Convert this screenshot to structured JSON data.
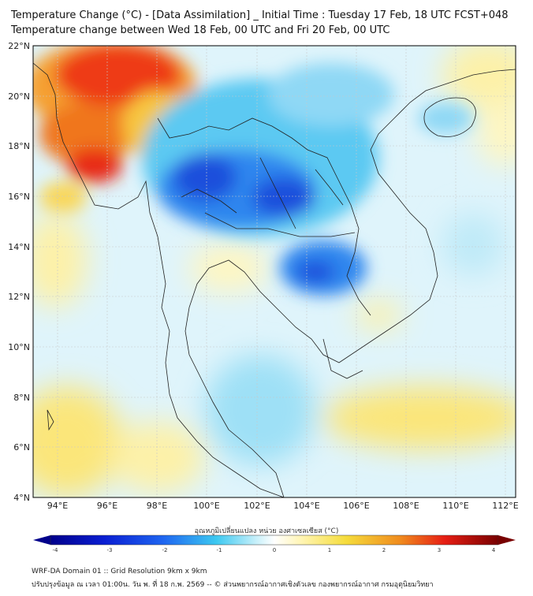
{
  "title": {
    "line1": "Temperature Change (°C) - [Data Assimilation] _ Initial Time : Tuesday 17 Feb, 18 UTC FCST+048",
    "line2": "Temperature change between Wed 18 Feb, 00 UTC and Fri 20 Feb, 00 UTC"
  },
  "map": {
    "lat_labels": [
      "22°N",
      "20°N",
      "18°N",
      "16°N",
      "14°N",
      "12°N",
      "10°N",
      "8°N",
      "6°N",
      "4°N"
    ],
    "lon_labels": [
      "94°E",
      "96°E",
      "98°E",
      "100°E",
      "102°E",
      "104°E",
      "106°E",
      "108°E",
      "110°E",
      "112°E"
    ]
  },
  "colorbar": {
    "label": "อุณหภูมิเปลี่ยนแปลง หน่วย องศาเซลเซียส (°C)",
    "ticks": [
      "-4",
      "-3",
      "-2",
      "-1",
      "0",
      "1",
      "2",
      "3",
      "4"
    ],
    "colors": {
      "deep_blue": "#00008b",
      "blue": "#1e50e6",
      "cyan": "#3cc8f0",
      "light_cyan": "#c8f0fa",
      "white": "#ffffff",
      "light_yellow": "#fff5b4",
      "yellow": "#f5dc3c",
      "orange": "#f08c1e",
      "red": "#e61e14",
      "dark_red": "#780000"
    }
  },
  "footer": {
    "line1": "WRF-DA Domain 01 :: Grid Resolution 9km x 9km",
    "line2": "ปรับปรุงข้อมูล ณ เวลา 01:00น. วัน พ. ที่ 18 ก.พ. 2569 -- © ส่วนพยากรณ์อากาศเชิงตัวเลข กองพยากรณ์อากาศ กรมอุตุนิยมวิทยา"
  }
}
